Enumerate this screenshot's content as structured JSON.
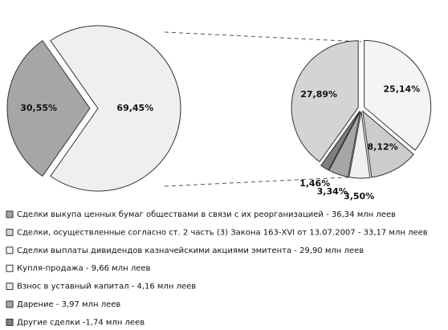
{
  "chart_data": {
    "type": "pie",
    "categories": [
      "Сделки выкупа ценных бумаг обществами в связи с их реорганизацией - 36,34 млн леев",
      "Сделки, осуществленные согласно ст. 2 часть (3) Закона 163-XVI от 13.07.2007 - 33,17 млн леев",
      "Сделки выплаты дивидендов казначейскими акциями эмитента - 29,90 млн леев",
      "Купля-продажа - 9,66 млн леев",
      "Взнос в уставный капитал - 4,16 млн леев",
      "Дарение - 3,97 млн леев",
      "Другие сделки -1,74 млн леев"
    ],
    "colors": [
      "#a6a6a6",
      "#d4d4d4",
      "#f4f4f4",
      "#ffffff",
      "#ebebeb",
      "#a6a6a6",
      "#7f7f7f"
    ],
    "main": {
      "values": [
        30.55,
        69.45
      ],
      "value_labels": [
        "30,55%",
        "69,45%"
      ],
      "colors": [
        "#a6a6a6",
        "#efefef"
      ]
    },
    "secondary": {
      "values": [
        25.14,
        8.12,
        3.5,
        3.34,
        1.46,
        27.89
      ],
      "value_labels": [
        "25,14%",
        "8,12%",
        "3,50%",
        "3,34%",
        "1,46%",
        "27,89%"
      ],
      "colors": [
        "#f4f4f4",
        "#cccccc",
        "#f0f0f0",
        "#a6a6a6",
        "#7f7f7f",
        "#d4d4d4"
      ]
    }
  }
}
